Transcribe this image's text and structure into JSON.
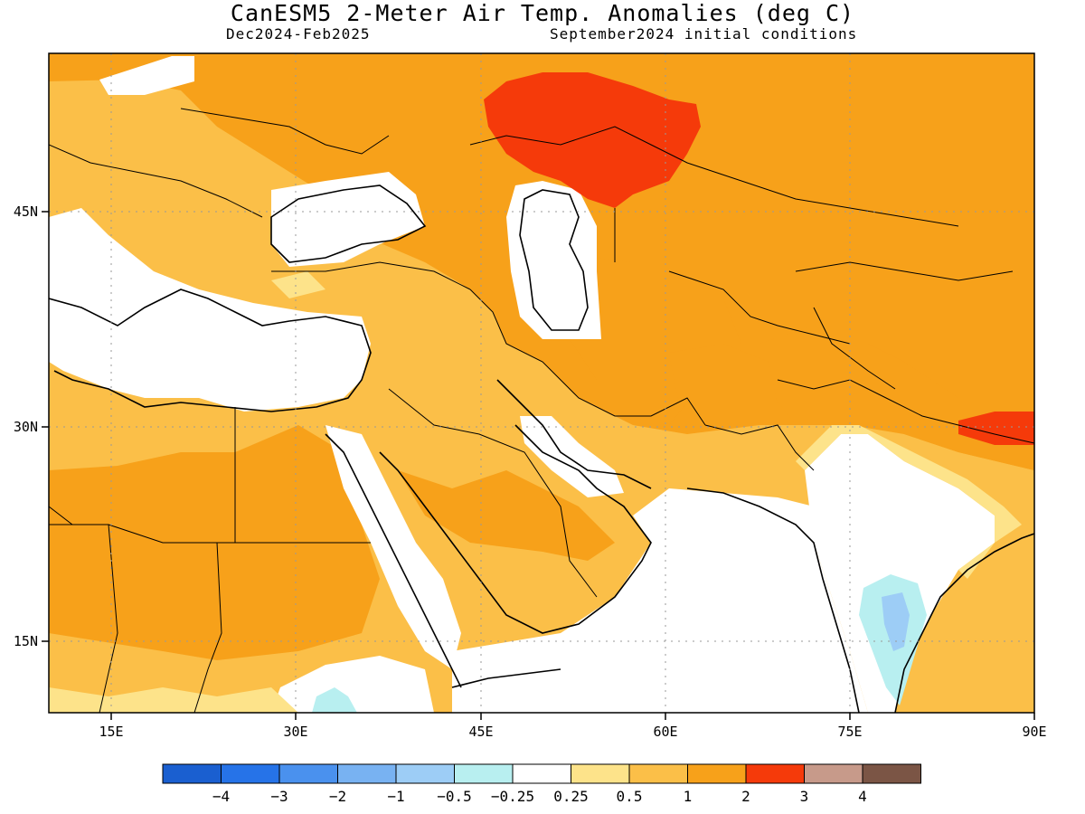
{
  "title": "CanESM5 2-Meter Air Temp. Anomalies (deg C)",
  "subtitle_left": "Dec2024-Feb2025",
  "subtitle_right": "September2024 initial conditions",
  "map": {
    "lon_range": [
      10,
      90
    ],
    "lat_range": [
      10,
      55
    ],
    "x_ticks": [
      "15E",
      "30E",
      "45E",
      "60E",
      "75E",
      "90E"
    ],
    "y_ticks": [
      "45N",
      "30N",
      "15N"
    ]
  },
  "colorbar": {
    "colors": [
      "#1a5fd0",
      "#2673e8",
      "#4a91ee",
      "#78b2f2",
      "#9dcdf6",
      "#b8eff0",
      "#ffffff",
      "#fde38a",
      "#fbbf48",
      "#f7a11a",
      "#f53a0a",
      "#c79a8a",
      "#7b5545"
    ],
    "labels": [
      "-4",
      "-3",
      "-2",
      "-1",
      "-0.5",
      "-0.25",
      "0.25",
      "0.5",
      "1",
      "2",
      "3",
      "4"
    ]
  }
}
